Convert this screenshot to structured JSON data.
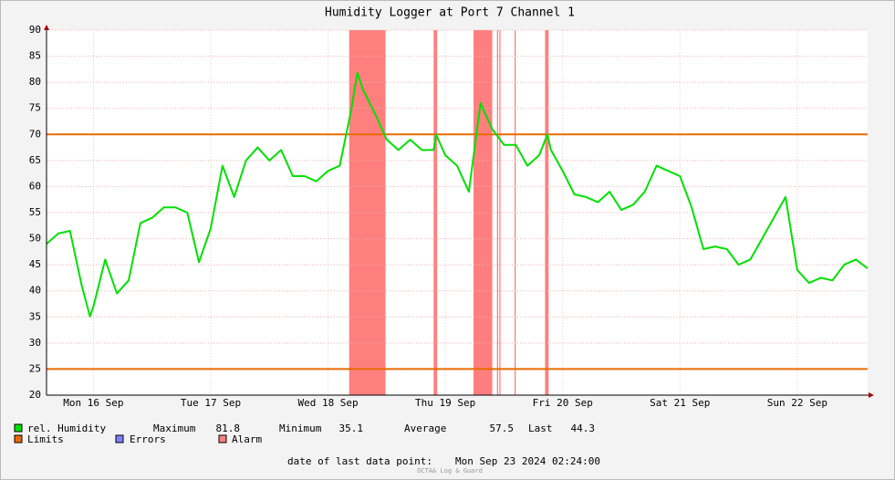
{
  "chart_data": {
    "type": "line",
    "title": "Humidity Logger at Port 7 Channel 1",
    "x": [
      0,
      0.1,
      0.2,
      0.3,
      0.37,
      0.4,
      0.5,
      0.6,
      0.7,
      0.8,
      0.9,
      1.0,
      1.1,
      1.2,
      1.3,
      1.4,
      1.5,
      1.6,
      1.7,
      1.8,
      1.9,
      2.0,
      2.1,
      2.2,
      2.3,
      2.4,
      2.5,
      2.6,
      2.65,
      2.7,
      2.8,
      2.9,
      3.0,
      3.1,
      3.2,
      3.3,
      3.32,
      3.4,
      3.5,
      3.6,
      3.7,
      3.8,
      3.9,
      4.0,
      4.1,
      4.2,
      4.27,
      4.3,
      4.4,
      4.5,
      4.6,
      4.7,
      4.8,
      4.9,
      5.0,
      5.1,
      5.2,
      5.3,
      5.4,
      5.5,
      5.6,
      5.7,
      5.8,
      5.9,
      6.0,
      6.1,
      6.2,
      6.3,
      6.4,
      6.5,
      6.6,
      6.7,
      6.8,
      6.9,
      7.0
    ],
    "series": [
      {
        "name": "rel. Humidity",
        "color": "#00e000",
        "values": [
          49,
          51,
          51.5,
          41,
          35.1,
          37,
          46,
          39.5,
          42,
          53,
          54,
          56,
          56,
          55,
          45.5,
          52,
          64,
          58,
          65,
          67.5,
          65,
          67,
          62,
          62,
          61,
          63,
          64,
          75,
          81.8,
          78.5,
          74,
          69,
          67,
          69,
          67,
          67,
          70,
          66,
          64,
          59,
          76,
          71,
          68,
          68,
          64,
          66,
          70,
          67,
          63,
          58.5,
          58,
          57,
          59,
          55.5,
          56.5,
          59,
          64,
          63,
          62,
          56,
          48,
          48.5,
          48,
          45,
          46,
          50,
          54,
          58,
          44,
          41.5,
          42.5,
          42,
          45,
          46,
          44.3
        ]
      }
    ],
    "xlim": [
      0,
      7
    ],
    "xticks": [
      {
        "value": 0.4,
        "label": "Mon 16 Sep"
      },
      {
        "value": 1.4,
        "label": "Tue 17 Sep"
      },
      {
        "value": 2.4,
        "label": "Wed 18 Sep"
      },
      {
        "value": 3.4,
        "label": "Thu 19 Sep"
      },
      {
        "value": 4.4,
        "label": "Fri 20 Sep"
      },
      {
        "value": 5.4,
        "label": "Sat 21 Sep"
      },
      {
        "value": 6.4,
        "label": "Sun 22 Sep"
      }
    ],
    "ylim": [
      20,
      90
    ],
    "yticks": [
      20,
      25,
      30,
      35,
      40,
      45,
      50,
      55,
      60,
      65,
      70,
      75,
      80,
      85,
      90
    ],
    "grid": true,
    "limits": [
      70,
      25
    ],
    "limit_color": "#e86a00",
    "alarm_bands": [
      [
        2.58,
        2.89
      ],
      [
        3.3,
        3.33
      ],
      [
        3.64,
        3.8
      ],
      [
        3.84,
        3.85
      ],
      [
        3.86,
        3.87
      ],
      [
        3.99,
        4.0
      ],
      [
        4.25,
        4.28
      ]
    ],
    "alarm_color": "#ff7f7f",
    "error_color": "#7f7fff",
    "legend": {
      "limits": "Limits",
      "errors": "Errors",
      "alarm": "Alarm"
    },
    "stats": [
      {
        "label": "Maximum",
        "value": 81.8
      },
      {
        "label": "Minimum",
        "value": 35.1
      },
      {
        "label": "Average",
        "value": 57.5
      },
      {
        "label": "Last",
        "value": 44.3
      }
    ],
    "footer_label": "date of last data point:",
    "footer_date": "Mon Sep 23 2024 02:24:00",
    "credit": "OCTA& Log & Guard"
  }
}
